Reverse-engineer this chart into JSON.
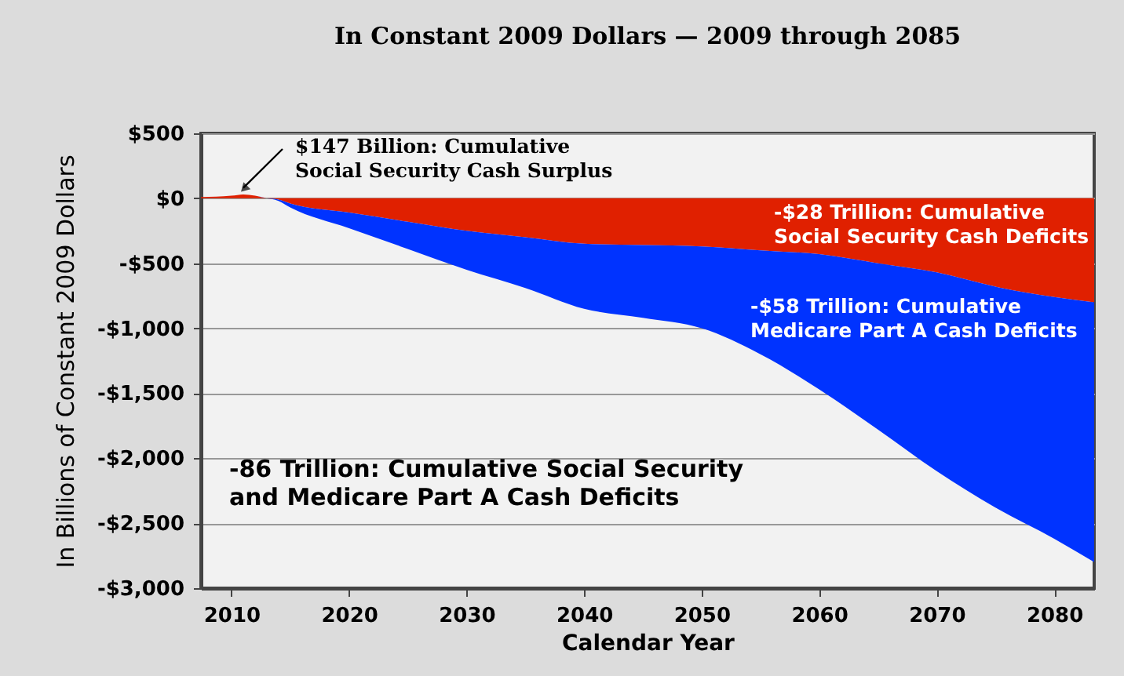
{
  "chart_data": {
    "type": "area",
    "stacked": true,
    "title": "In Constant 2009 Dollars — 2009 through 2085",
    "xlabel": "Calendar Year",
    "ylabel": "In Billions of Constant 2009 Dollars",
    "x": [
      2007.4,
      2010,
      2011,
      2012,
      2013,
      2014,
      2015,
      2020,
      2025,
      2030,
      2035,
      2040,
      2045,
      2050,
      2055,
      2060,
      2065,
      2070,
      2075,
      2080,
      2083.4
    ],
    "series": [
      {
        "color": "#e02000",
        "values": [
          10,
          20,
          30,
          20,
          0,
          -10,
          -40,
          -110,
          -180,
          -250,
          -300,
          -350,
          -360,
          -370,
          -400,
          -430,
          -500,
          -570,
          -680,
          -760,
          -800
        ]
      },
      {
        "color": "#0033ff",
        "values": [
          0,
          0,
          0,
          0,
          0,
          -10,
          -30,
          -120,
          -210,
          -300,
          -390,
          -500,
          -560,
          -630,
          -800,
          -1040,
          -1280,
          -1530,
          -1700,
          -1860,
          -2000
        ]
      }
    ],
    "xlim": [
      2007.4,
      2083.4
    ],
    "xticks": [
      2010,
      2020,
      2030,
      2040,
      2050,
      2060,
      2070,
      2080
    ],
    "ylim": [
      -3000,
      500
    ],
    "yticks": [
      {
        "value": 500,
        "label": "$500"
      },
      {
        "value": 0,
        "label": "$0"
      },
      {
        "value": -500,
        "label": "-$500"
      },
      {
        "value": -1000,
        "label": "-$1,000"
      },
      {
        "value": -1500,
        "label": "-$1,500"
      },
      {
        "value": -2000,
        "label": "-$2,000"
      },
      {
        "value": -2500,
        "label": "-$2,500"
      },
      {
        "value": -3000,
        "label": "-$3,000"
      }
    ],
    "grid": "y",
    "legend": false,
    "annotations": [
      {
        "text": "$147 Billion:  Cumulative\nSocial Security Cash Surplus",
        "x": 2011,
        "y": 30
      },
      "-$28 Trillion:  Cumulative\nSocial Security Cash Deficits",
      "-$58 Trillion:  Cumulative\nMedicare Part A Cash Deficits",
      "-86 Trillion:  Cumulative Social Security\nand Medicare Part A Cash Deficits"
    ]
  }
}
